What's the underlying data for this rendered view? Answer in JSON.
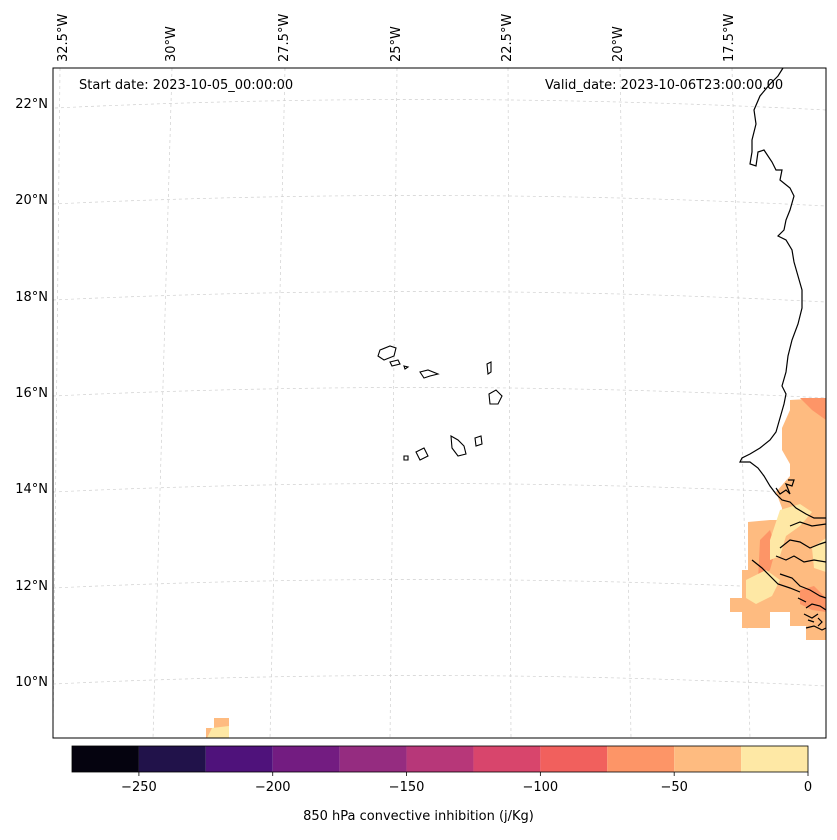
{
  "map": {
    "title_left": "Start date: 2023-10-05_00:00:00",
    "title_right": "Valid_date: 2023-10-06T23:00:00.00",
    "lon_labels": [
      "32.5°W",
      "30°W",
      "27.5°W",
      "25°W",
      "22.5°W",
      "20°W",
      "17.5°W"
    ],
    "lat_labels": [
      "22°N",
      "20°N",
      "18°N",
      "16°N",
      "14°N",
      "12°N",
      "10°N"
    ],
    "lon_range_deg": [
      -33.0,
      -15.0
    ],
    "lat_range_deg": [
      8.9,
      22.8
    ]
  },
  "colorbar": {
    "label": "850 hPa convective inhibition (j/Kg)",
    "ticks": [
      "−250",
      "−200",
      "−150",
      "−100",
      "−50",
      "0"
    ],
    "tick_values": [
      -250,
      -200,
      -150,
      -100,
      -50,
      0
    ],
    "range": [
      -275,
      0
    ],
    "levels": [
      -275,
      -250,
      -225,
      -200,
      -175,
      -150,
      -125,
      -100,
      -75,
      -50,
      -25,
      0
    ],
    "colors": [
      "#05030f",
      "#21124a",
      "#4f127b",
      "#731c81",
      "#952c80",
      "#b73779",
      "#d8456c",
      "#f1605d",
      "#fd9567",
      "#febb80",
      "#fee8a5"
    ]
  }
}
